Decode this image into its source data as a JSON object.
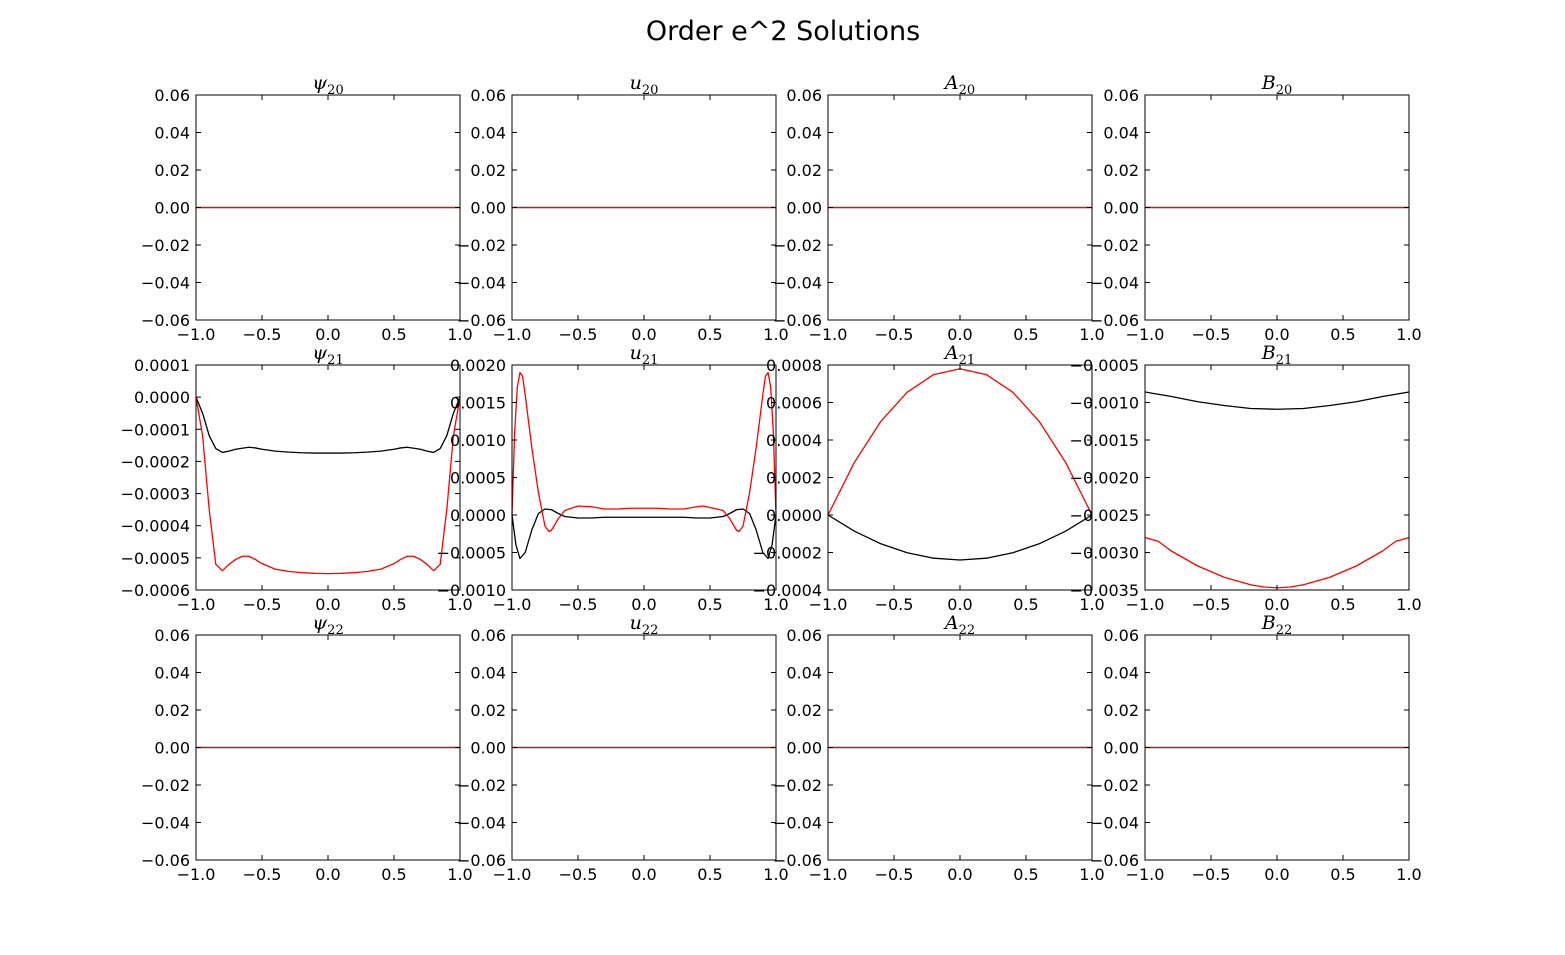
{
  "figure": {
    "title": "Order e^2 Solutions"
  },
  "colors": {
    "black_series": "#000000",
    "red_series": "#ff0000"
  },
  "chart_data": [
    {
      "type": "line",
      "title": "ψ",
      "title_sub": "20",
      "xlim": [
        -1,
        1
      ],
      "ylim": [
        -0.06,
        0.06
      ],
      "x_ticks": [
        "−1.0",
        "−0.5",
        "0.0",
        "0.5",
        "1.0"
      ],
      "y_ticks": [
        "−0.06",
        "−0.04",
        "−0.02",
        "0.00",
        "0.02",
        "0.04",
        "0.06"
      ],
      "series": [
        {
          "color": "#000000",
          "x": [
            -1,
            1
          ],
          "y": [
            0,
            0
          ]
        },
        {
          "color": "#ff0000",
          "x": [
            -1,
            1
          ],
          "y": [
            0,
            0
          ]
        }
      ]
    },
    {
      "type": "line",
      "title": "u",
      "title_sub": "20",
      "xlim": [
        -1,
        1
      ],
      "ylim": [
        -0.06,
        0.06
      ],
      "x_ticks": [
        "−1.0",
        "−0.5",
        "0.0",
        "0.5",
        "1.0"
      ],
      "y_ticks": [
        "−0.06",
        "−0.04",
        "−0.02",
        "0.00",
        "0.02",
        "0.04",
        "0.06"
      ],
      "series": [
        {
          "color": "#000000",
          "x": [
            -1,
            1
          ],
          "y": [
            0,
            0
          ]
        },
        {
          "color": "#ff0000",
          "x": [
            -1,
            1
          ],
          "y": [
            0,
            0
          ]
        }
      ]
    },
    {
      "type": "line",
      "title": "A",
      "title_sub": "20",
      "xlim": [
        -1,
        1
      ],
      "ylim": [
        -0.06,
        0.06
      ],
      "x_ticks": [
        "−1.0",
        "−0.5",
        "0.0",
        "0.5",
        "1.0"
      ],
      "y_ticks": [
        "−0.06",
        "−0.04",
        "−0.02",
        "0.00",
        "0.02",
        "0.04",
        "0.06"
      ],
      "series": [
        {
          "color": "#000000",
          "x": [
            -1,
            1
          ],
          "y": [
            0,
            0
          ]
        },
        {
          "color": "#ff0000",
          "x": [
            -1,
            1
          ],
          "y": [
            0,
            0
          ]
        }
      ]
    },
    {
      "type": "line",
      "title": "B",
      "title_sub": "20",
      "xlim": [
        -1,
        1
      ],
      "ylim": [
        -0.06,
        0.06
      ],
      "x_ticks": [
        "−1.0",
        "−0.5",
        "0.0",
        "0.5",
        "1.0"
      ],
      "y_ticks": [
        "−0.06",
        "−0.04",
        "−0.02",
        "0.00",
        "0.02",
        "0.04",
        "0.06"
      ],
      "series": [
        {
          "color": "#000000",
          "x": [
            -1,
            1
          ],
          "y": [
            0,
            0
          ]
        },
        {
          "color": "#ff0000",
          "x": [
            -1,
            1
          ],
          "y": [
            0,
            0
          ]
        }
      ]
    },
    {
      "type": "line",
      "title": "ψ",
      "title_sub": "21",
      "xlim": [
        -1,
        1
      ],
      "ylim": [
        -0.0006,
        0.0001
      ],
      "x_ticks": [
        "−1.0",
        "−0.5",
        "0.0",
        "0.5",
        "1.0"
      ],
      "y_ticks": [
        "−0.0006",
        "−0.0005",
        "−0.0004",
        "−0.0003",
        "−0.0002",
        "−0.0001",
        "0.0000",
        "0.0001"
      ],
      "series": [
        {
          "color": "#000000",
          "x": [
            -1.0,
            -0.95,
            -0.9,
            -0.85,
            -0.8,
            -0.75,
            -0.7,
            -0.6,
            -0.55,
            -0.5,
            -0.4,
            -0.3,
            -0.2,
            -0.1,
            0.0,
            0.1,
            0.2,
            0.3,
            0.4,
            0.5,
            0.55,
            0.6,
            0.7,
            0.75,
            0.8,
            0.85,
            0.9,
            0.95,
            1.0
          ],
          "y": [
            0.0,
            -5e-05,
            -0.00012,
            -0.00016,
            -0.000172,
            -0.000168,
            -0.000162,
            -0.000156,
            -0.000158,
            -0.000162,
            -0.000168,
            -0.000171,
            -0.000173,
            -0.000174,
            -0.000174,
            -0.000174,
            -0.000173,
            -0.000171,
            -0.000168,
            -0.000162,
            -0.000158,
            -0.000156,
            -0.000162,
            -0.000168,
            -0.000172,
            -0.00016,
            -0.00012,
            -5e-05,
            0.0
          ]
        },
        {
          "color": "#ff0000",
          "x": [
            -1.0,
            -0.95,
            -0.9,
            -0.85,
            -0.8,
            -0.75,
            -0.7,
            -0.65,
            -0.6,
            -0.55,
            -0.5,
            -0.4,
            -0.3,
            -0.2,
            -0.1,
            0.0,
            0.1,
            0.2,
            0.3,
            0.4,
            0.5,
            0.55,
            0.6,
            0.65,
            0.7,
            0.75,
            0.8,
            0.85,
            0.9,
            0.95,
            1.0
          ],
          "y": [
            0.0,
            -0.00012,
            -0.00035,
            -0.00052,
            -0.00054,
            -0.00052,
            -0.000505,
            -0.000495,
            -0.000495,
            -0.000505,
            -0.000518,
            -0.000535,
            -0.000542,
            -0.000546,
            -0.000548,
            -0.000549,
            -0.000548,
            -0.000546,
            -0.000542,
            -0.000535,
            -0.000518,
            -0.000505,
            -0.000495,
            -0.000495,
            -0.000505,
            -0.00052,
            -0.00054,
            -0.00052,
            -0.00035,
            -0.00012,
            0.0
          ]
        }
      ]
    },
    {
      "type": "line",
      "title": "u",
      "title_sub": "21",
      "xlim": [
        -1,
        1
      ],
      "ylim": [
        -0.001,
        0.002
      ],
      "x_ticks": [
        "−1.0",
        "−0.5",
        "0.0",
        "0.5",
        "1.0"
      ],
      "y_ticks": [
        "−0.0010",
        "−0.0005",
        "0.0000",
        "0.0005",
        "0.0010",
        "0.0015",
        "0.0020"
      ],
      "series": [
        {
          "color": "#000000",
          "x": [
            -1.0,
            -0.97,
            -0.94,
            -0.9,
            -0.85,
            -0.8,
            -0.75,
            -0.7,
            -0.65,
            -0.6,
            -0.5,
            -0.4,
            -0.3,
            -0.2,
            -0.1,
            0.0,
            0.1,
            0.2,
            0.3,
            0.4,
            0.5,
            0.6,
            0.65,
            0.7,
            0.75,
            0.8,
            0.85,
            0.9,
            0.94,
            0.97,
            1.0
          ],
          "y": [
            0.0,
            -0.0004,
            -0.00058,
            -0.0005,
            -0.0002,
            2e-05,
            8e-05,
            7e-05,
            2e-05,
            -2e-05,
            -4e-05,
            -4e-05,
            -3e-05,
            -3e-05,
            -3e-05,
            -3e-05,
            -3e-05,
            -3e-05,
            -3e-05,
            -4e-05,
            -4e-05,
            -2e-05,
            2e-05,
            7e-05,
            8e-05,
            2e-05,
            -0.0002,
            -0.0005,
            -0.00058,
            -0.0004,
            0.0
          ]
        },
        {
          "color": "#ff0000",
          "x": [
            -1.0,
            -0.98,
            -0.96,
            -0.94,
            -0.92,
            -0.9,
            -0.85,
            -0.8,
            -0.75,
            -0.72,
            -0.7,
            -0.65,
            -0.6,
            -0.5,
            -0.4,
            -0.3,
            -0.2,
            -0.1,
            0.0,
            0.1,
            0.2,
            0.3,
            0.4,
            0.45,
            0.5,
            0.6,
            0.65,
            0.7,
            0.72,
            0.75,
            0.8,
            0.85,
            0.9,
            0.92,
            0.94,
            0.96,
            0.98,
            1.0
          ],
          "y": [
            0.0,
            0.0011,
            0.0017,
            0.0019,
            0.00185,
            0.0016,
            0.0009,
            0.0003,
            -0.00015,
            -0.00022,
            -0.0002,
            -5e-05,
            6e-05,
            0.00012,
            0.00011,
            8e-05,
            8e-05,
            9e-05,
            9e-05,
            9e-05,
            8e-05,
            8e-05,
            0.00011,
            0.00012,
            0.0001,
            6e-05,
            -5e-05,
            -0.0002,
            -0.00022,
            -0.00015,
            0.0003,
            0.0009,
            0.0016,
            0.00185,
            0.0019,
            0.0017,
            0.0011,
            0.0
          ]
        }
      ]
    },
    {
      "type": "line",
      "title": "A",
      "title_sub": "21",
      "xlim": [
        -1,
        1
      ],
      "ylim": [
        -0.0004,
        0.0008
      ],
      "x_ticks": [
        "−1.0",
        "−0.5",
        "0.0",
        "0.5",
        "1.0"
      ],
      "y_ticks": [
        "−0.0004",
        "−0.0002",
        "0.0000",
        "0.0002",
        "0.0004",
        "0.0006",
        "0.0008"
      ],
      "series": [
        {
          "color": "#000000",
          "x": [
            -1.0,
            -0.8,
            -0.6,
            -0.4,
            -0.2,
            0.0,
            0.2,
            0.4,
            0.6,
            0.8,
            1.0
          ],
          "y": [
            0.0,
            -8.64e-05,
            -0.0001536,
            -0.0002016,
            -0.0002304,
            -0.00024,
            -0.0002304,
            -0.0002016,
            -0.0001536,
            -8.64e-05,
            0.0
          ]
        },
        {
          "color": "#ff0000",
          "x": [
            -1.0,
            -0.8,
            -0.6,
            -0.4,
            -0.2,
            0.0,
            0.2,
            0.4,
            0.6,
            0.8,
            1.0
          ],
          "y": [
            0.0,
            0.0002808,
            0.0004992,
            0.0006552,
            0.0007488,
            0.00078,
            0.0007488,
            0.0006552,
            0.0004992,
            0.0002808,
            0.0
          ]
        }
      ]
    },
    {
      "type": "line",
      "title": "B",
      "title_sub": "21",
      "xlim": [
        -1,
        1
      ],
      "ylim": [
        -0.0035,
        -0.0005
      ],
      "x_ticks": [
        "−1.0",
        "−0.5",
        "0.0",
        "0.5",
        "1.0"
      ],
      "y_ticks": [
        "−0.0035",
        "−0.0030",
        "−0.0025",
        "−0.0020",
        "−0.0015",
        "−0.0010",
        "−0.0005"
      ],
      "series": [
        {
          "color": "#000000",
          "x": [
            -1.0,
            -0.8,
            -0.6,
            -0.4,
            -0.2,
            0.0,
            0.2,
            0.4,
            0.6,
            0.8,
            1.0
          ],
          "y": [
            -0.00086,
            -0.00092,
            -0.00099,
            -0.00104,
            -0.00108,
            -0.00109,
            -0.00108,
            -0.00104,
            -0.00099,
            -0.00092,
            -0.00086
          ]
        },
        {
          "color": "#ff0000",
          "x": [
            -1.0,
            -0.9,
            -0.8,
            -0.6,
            -0.4,
            -0.2,
            -0.1,
            0.0,
            0.1,
            0.2,
            0.4,
            0.6,
            0.8,
            0.9,
            1.0
          ],
          "y": [
            -0.0028,
            -0.00285,
            -0.00298,
            -0.00318,
            -0.00333,
            -0.00343,
            -0.00346,
            -0.00347,
            -0.00346,
            -0.00343,
            -0.00333,
            -0.00318,
            -0.00298,
            -0.00285,
            -0.0028
          ]
        }
      ]
    },
    {
      "type": "line",
      "title": "ψ",
      "title_sub": "22",
      "xlim": [
        -1,
        1
      ],
      "ylim": [
        -0.06,
        0.06
      ],
      "x_ticks": [
        "−1.0",
        "−0.5",
        "0.0",
        "0.5",
        "1.0"
      ],
      "y_ticks": [
        "−0.06",
        "−0.04",
        "−0.02",
        "0.00",
        "0.02",
        "0.04",
        "0.06"
      ],
      "series": [
        {
          "color": "#000000",
          "x": [
            -1,
            1
          ],
          "y": [
            0,
            0
          ]
        },
        {
          "color": "#ff0000",
          "x": [
            -1,
            1
          ],
          "y": [
            0,
            0
          ]
        }
      ]
    },
    {
      "type": "line",
      "title": "u",
      "title_sub": "22",
      "xlim": [
        -1,
        1
      ],
      "ylim": [
        -0.06,
        0.06
      ],
      "x_ticks": [
        "−1.0",
        "−0.5",
        "0.0",
        "0.5",
        "1.0"
      ],
      "y_ticks": [
        "−0.06",
        "−0.04",
        "−0.02",
        "0.00",
        "0.02",
        "0.04",
        "0.06"
      ],
      "series": [
        {
          "color": "#000000",
          "x": [
            -1,
            1
          ],
          "y": [
            0,
            0
          ]
        },
        {
          "color": "#ff0000",
          "x": [
            -1,
            1
          ],
          "y": [
            0,
            0
          ]
        }
      ]
    },
    {
      "type": "line",
      "title": "A",
      "title_sub": "22",
      "xlim": [
        -1,
        1
      ],
      "ylim": [
        -0.06,
        0.06
      ],
      "x_ticks": [
        "−1.0",
        "−0.5",
        "0.0",
        "0.5",
        "1.0"
      ],
      "y_ticks": [
        "−0.06",
        "−0.04",
        "−0.02",
        "0.00",
        "0.02",
        "0.04",
        "0.06"
      ],
      "series": [
        {
          "color": "#000000",
          "x": [
            -1,
            1
          ],
          "y": [
            0,
            0
          ]
        },
        {
          "color": "#ff0000",
          "x": [
            -1,
            1
          ],
          "y": [
            0,
            0
          ]
        }
      ]
    },
    {
      "type": "line",
      "title": "B",
      "title_sub": "22",
      "xlim": [
        -1,
        1
      ],
      "ylim": [
        -0.06,
        0.06
      ],
      "x_ticks": [
        "−1.0",
        "−0.5",
        "0.0",
        "0.5",
        "1.0"
      ],
      "y_ticks": [
        "−0.06",
        "−0.04",
        "−0.02",
        "0.00",
        "0.02",
        "0.04",
        "0.06"
      ],
      "series": [
        {
          "color": "#000000",
          "x": [
            -1,
            1
          ],
          "y": [
            0,
            0
          ]
        },
        {
          "color": "#ff0000",
          "x": [
            -1,
            1
          ],
          "y": [
            0,
            0
          ]
        }
      ]
    }
  ]
}
